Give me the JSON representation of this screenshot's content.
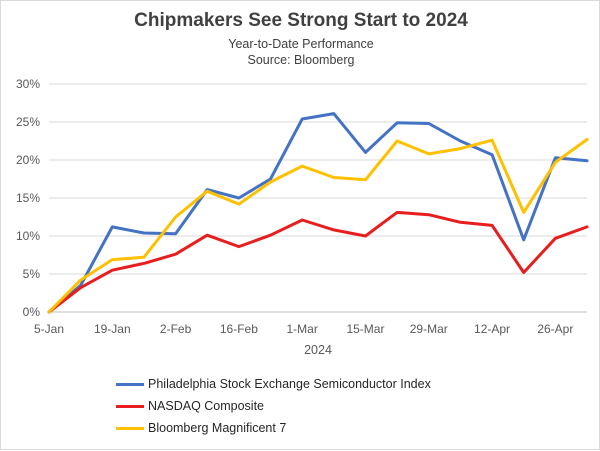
{
  "chart_data": {
    "type": "line",
    "title": "Chipmakers See Strong Start to 2024",
    "subtitle": "Year-to-Date Performance",
    "source": "Source: Bloomberg",
    "xlabel": "2024",
    "ylabel": "",
    "ylim": [
      0,
      30
    ],
    "y_ticks": [
      "0%",
      "5%",
      "10%",
      "15%",
      "20%",
      "25%",
      "30%"
    ],
    "x_tick_labels": [
      "5-Jan",
      "19-Jan",
      "2-Feb",
      "16-Feb",
      "1-Mar",
      "15-Mar",
      "29-Mar",
      "12-Apr",
      "26-Apr"
    ],
    "x": [
      "5-Jan",
      "12-Jan",
      "19-Jan",
      "26-Jan",
      "2-Feb",
      "9-Feb",
      "16-Feb",
      "23-Feb",
      "1-Mar",
      "8-Mar",
      "15-Mar",
      "22-Mar",
      "29-Mar",
      "5-Apr",
      "12-Apr",
      "19-Apr",
      "26-Apr",
      "3-May"
    ],
    "grid": "horizontal",
    "legend_position": "bottom",
    "series": [
      {
        "name": "Philadelphia Stock Exchange Semiconductor Index",
        "color": "#4472c4",
        "values": [
          0,
          3.5,
          11.2,
          10.4,
          10.3,
          16.1,
          15.0,
          17.5,
          25.4,
          26.1,
          21.0,
          24.9,
          24.8,
          22.5,
          20.7,
          9.5,
          20.3,
          19.9
        ]
      },
      {
        "name": "NASDAQ Composite",
        "color": "#e81e1e",
        "values": [
          0,
          3.2,
          5.5,
          6.4,
          7.6,
          10.1,
          8.6,
          10.1,
          12.1,
          10.8,
          10.0,
          13.1,
          12.8,
          11.8,
          11.4,
          5.2,
          9.7,
          11.2
        ]
      },
      {
        "name": "Bloomberg Magnificent 7",
        "color": "#ffc000",
        "values": [
          0,
          4.2,
          6.9,
          7.2,
          12.5,
          15.9,
          14.2,
          17.1,
          19.2,
          17.7,
          17.4,
          22.5,
          20.8,
          21.5,
          22.6,
          13.1,
          19.7,
          22.7
        ]
      }
    ]
  }
}
